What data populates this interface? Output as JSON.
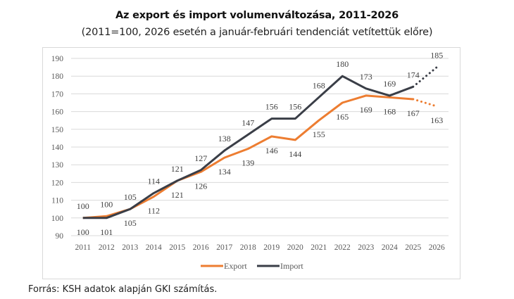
{
  "colors": {
    "export": "#ed7d31",
    "import": "#3a3e47",
    "grid": "#d9d9d9",
    "frame": "#d9d9d9"
  },
  "chart_data": {
    "type": "line",
    "title": "Az export és import volumenváltozása, 2011-2026",
    "subtitle": "(2011=100, 2026 esetén a január-februári tendenciát vetítettük előre)",
    "xlabel": "",
    "ylabel": "",
    "ylim": [
      90,
      190
    ],
    "yticks": [
      90,
      100,
      110,
      120,
      130,
      140,
      150,
      160,
      170,
      180,
      190
    ],
    "grid": true,
    "legend": "bottom",
    "x": [
      "2011",
      "2012",
      "2013",
      "2014",
      "2015",
      "2016",
      "2017",
      "2018",
      "2019",
      "2020",
      "2021",
      "2022",
      "2023",
      "2024",
      "2025",
      "2026"
    ],
    "series": [
      {
        "name": "Export",
        "color": "#ed7d31",
        "values": [
          100,
          101,
          105,
          112,
          121,
          126,
          134,
          139,
          146,
          144,
          155,
          165,
          169,
          168,
          167,
          163
        ],
        "projected_from_index": 14
      },
      {
        "name": "Import",
        "color": "#3a3e47",
        "values": [
          100,
          100,
          105,
          114,
          121,
          127,
          138,
          147,
          156,
          156,
          168,
          180,
          173,
          169,
          174,
          185
        ],
        "projected_from_index": 14
      }
    ]
  },
  "source": "Forrás: KSH adatok alapján GKI számítás."
}
